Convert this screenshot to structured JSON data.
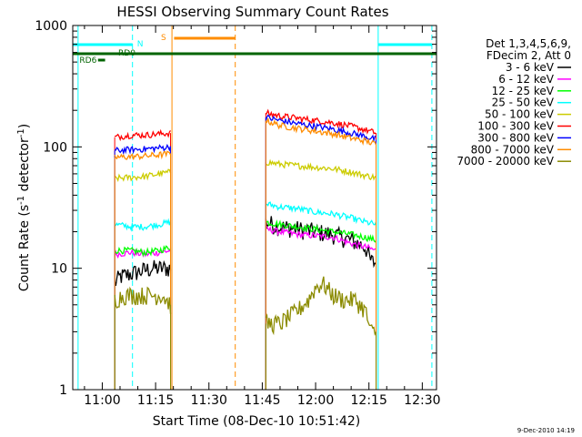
{
  "chart_data": {
    "type": "line",
    "title": "HESSI Observing Summary Count Rates",
    "xlabel": "Start Time (08-Dec-10 10:51:42)",
    "ylabel_main": "Count Rate (s",
    "ylabel_sup1": "-1",
    "ylabel_mid": " detector",
    "ylabel_sup2": "-1",
    "ylabel_end": ")",
    "yscale": "log",
    "xlim_min": [
      51.7,
      154
    ],
    "ylim": [
      1,
      1000
    ],
    "x_ticks": [
      "11:00",
      "11:15",
      "11:30",
      "11:45",
      "12:00",
      "12:15",
      "12:30"
    ],
    "x_tick_minutes": [
      60,
      75,
      90,
      105,
      120,
      135,
      150
    ],
    "y_ticks": [
      "1",
      "10",
      "100",
      "1000"
    ],
    "y_tick_values": [
      1,
      10,
      100,
      1000
    ],
    "legend_header": [
      "Det 1,3,4,5,6,9,",
      "FDecim 2, Att 0"
    ],
    "legend_placement": "right",
    "timestamp": "9-Dec-2010 14:19",
    "flags": [
      {
        "label": "N",
        "color": "#00ffff"
      },
      {
        "label": "S",
        "color": "#ff8c00"
      },
      {
        "label": "RD0",
        "color": "#006400"
      },
      {
        "label": "RD6",
        "color": "#006400"
      }
    ],
    "series": [
      {
        "name": "3 - 6 keV",
        "color": "#000000",
        "seg1": [
          [
            63.5,
            7.5
          ],
          [
            65,
            8.5
          ],
          [
            68,
            9
          ],
          [
            71,
            9.5
          ],
          [
            74,
            10
          ],
          [
            77,
            10
          ],
          [
            79.2,
            10
          ]
        ],
        "seg2": [
          [
            106,
            24
          ],
          [
            110,
            22
          ],
          [
            115,
            21
          ],
          [
            120,
            20
          ],
          [
            125,
            19
          ],
          [
            130,
            17
          ],
          [
            134,
            15
          ],
          [
            135.5,
            11.5
          ],
          [
            137,
            11
          ]
        ]
      },
      {
        "name": "6 - 12 keV",
        "color": "#ff00ff",
        "seg1": [
          [
            63.5,
            13
          ],
          [
            68,
            13.5
          ],
          [
            72,
            13
          ],
          [
            76,
            13.5
          ],
          [
            79.2,
            14
          ]
        ],
        "seg2": [
          [
            106,
            21
          ],
          [
            110,
            20
          ],
          [
            115,
            19
          ],
          [
            120,
            18.5
          ],
          [
            125,
            18
          ],
          [
            130,
            16
          ],
          [
            134,
            15
          ],
          [
            137,
            14
          ]
        ]
      },
      {
        "name": "12 - 25 keV",
        "color": "#00ff00",
        "seg1": [
          [
            63.5,
            14
          ],
          [
            68,
            14
          ],
          [
            72,
            13.5
          ],
          [
            76,
            14
          ],
          [
            79.2,
            15
          ]
        ],
        "seg2": [
          [
            106,
            24
          ],
          [
            110,
            23
          ],
          [
            115,
            22
          ],
          [
            120,
            21
          ],
          [
            125,
            20
          ],
          [
            130,
            19
          ],
          [
            134,
            18
          ],
          [
            137,
            17
          ]
        ]
      },
      {
        "name": "25 - 50 keV",
        "color": "#00ffff",
        "seg1": [
          [
            63.5,
            23
          ],
          [
            68,
            22
          ],
          [
            72,
            22
          ],
          [
            76,
            23
          ],
          [
            79.2,
            24
          ]
        ],
        "seg2": [
          [
            106,
            34
          ],
          [
            110,
            32
          ],
          [
            115,
            31
          ],
          [
            120,
            29
          ],
          [
            125,
            28
          ],
          [
            130,
            26
          ],
          [
            134,
            24
          ],
          [
            137,
            23
          ]
        ]
      },
      {
        "name": "50 - 100 keV",
        "color": "#cccc00",
        "seg1": [
          [
            63.5,
            55
          ],
          [
            68,
            56
          ],
          [
            72,
            57
          ],
          [
            76,
            60
          ],
          [
            79.2,
            62
          ]
        ],
        "seg2": [
          [
            106,
            75
          ],
          [
            110,
            72
          ],
          [
            115,
            70
          ],
          [
            120,
            68
          ],
          [
            125,
            66
          ],
          [
            130,
            62
          ],
          [
            134,
            58
          ],
          [
            137,
            56
          ]
        ]
      },
      {
        "name": "100 - 300 keV",
        "color": "#ff0000",
        "seg1": [
          [
            63.5,
            120
          ],
          [
            68,
            125
          ],
          [
            72,
            125
          ],
          [
            76,
            128
          ],
          [
            79.2,
            130
          ]
        ],
        "seg2": [
          [
            106,
            190
          ],
          [
            110,
            180
          ],
          [
            115,
            172
          ],
          [
            120,
            165
          ],
          [
            125,
            158
          ],
          [
            130,
            148
          ],
          [
            134,
            138
          ],
          [
            137,
            130
          ]
        ]
      },
      {
        "name": "300 - 800 keV",
        "color": "#0000ff",
        "seg1": [
          [
            63.5,
            93
          ],
          [
            68,
            95
          ],
          [
            72,
            96
          ],
          [
            76,
            98
          ],
          [
            79.2,
            100
          ]
        ],
        "seg2": [
          [
            106,
            175
          ],
          [
            110,
            165
          ],
          [
            115,
            155
          ],
          [
            120,
            148
          ],
          [
            125,
            140
          ],
          [
            130,
            130
          ],
          [
            134,
            122
          ],
          [
            137,
            115
          ]
        ]
      },
      {
        "name": "800 - 7000 keV",
        "color": "#ff8c00",
        "seg1": [
          [
            63.5,
            82
          ],
          [
            68,
            83
          ],
          [
            72,
            84
          ],
          [
            76,
            86
          ],
          [
            79.2,
            88
          ]
        ],
        "seg2": [
          [
            106,
            165
          ],
          [
            110,
            150
          ],
          [
            115,
            142
          ],
          [
            120,
            135
          ],
          [
            125,
            128
          ],
          [
            130,
            118
          ],
          [
            134,
            112
          ],
          [
            137,
            105
          ]
        ]
      },
      {
        "name": "7000 - 20000 keV",
        "color": "#8b8b00",
        "seg1": [
          [
            63.5,
            5.5
          ],
          [
            66,
            6
          ],
          [
            70,
            6
          ],
          [
            74,
            6
          ],
          [
            77,
            6
          ],
          [
            79.2,
            5
          ]
        ],
        "seg2": [
          [
            106,
            3.5
          ],
          [
            110,
            3.5
          ],
          [
            115,
            4.5
          ],
          [
            118,
            5.5
          ],
          [
            120,
            7
          ],
          [
            122,
            7.5
          ],
          [
            125,
            6
          ],
          [
            128,
            5.5
          ],
          [
            131,
            5.5
          ],
          [
            134,
            4.5
          ],
          [
            135.5,
            3
          ],
          [
            137,
            3
          ]
        ]
      }
    ]
  }
}
